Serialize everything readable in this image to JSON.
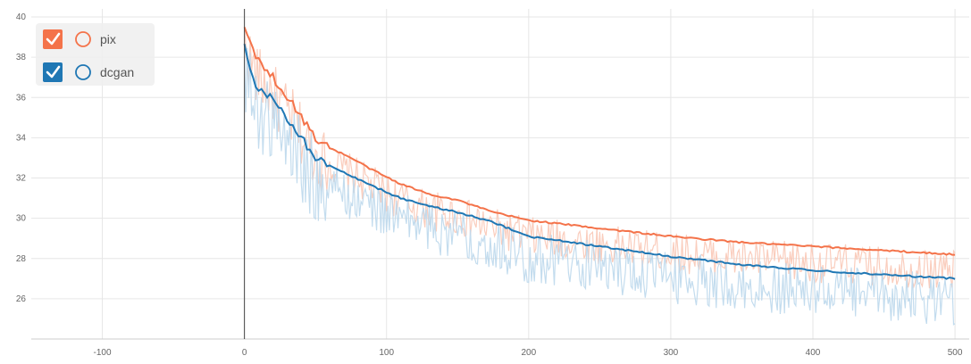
{
  "chart_data": {
    "type": "line",
    "title": "",
    "xlabel": "",
    "ylabel": "",
    "xlim": [
      -150,
      510
    ],
    "ylim": [
      24,
      40.4
    ],
    "x_ticks": [
      -100,
      0,
      100,
      200,
      300,
      400,
      500
    ],
    "y_ticks": [
      26,
      28,
      30,
      32,
      34,
      36,
      38,
      40
    ],
    "grid": true,
    "legend_position": "top-left",
    "series": [
      {
        "name": "pix",
        "color": "#f4734a",
        "raw_color": "#f9c8b6",
        "checked": true,
        "smoothed": [
          [
            0,
            39.6
          ],
          [
            5,
            38.5
          ],
          [
            10,
            37.8
          ],
          [
            15,
            37.5
          ],
          [
            20,
            37.0
          ],
          [
            25,
            36.5
          ],
          [
            30,
            36.0
          ],
          [
            35,
            35.6
          ],
          [
            40,
            35.0
          ],
          [
            45,
            34.5
          ],
          [
            50,
            34.0
          ],
          [
            60,
            33.5
          ],
          [
            75,
            33.0
          ],
          [
            90,
            32.4
          ],
          [
            110,
            31.7
          ],
          [
            130,
            31.2
          ],
          [
            150,
            30.9
          ],
          [
            175,
            30.3
          ],
          [
            200,
            29.9
          ],
          [
            250,
            29.5
          ],
          [
            300,
            29.1
          ],
          [
            350,
            28.8
          ],
          [
            400,
            28.6
          ],
          [
            450,
            28.4
          ],
          [
            500,
            28.2
          ]
        ]
      },
      {
        "name": "dcgan",
        "color": "#1f77b4",
        "raw_color": "#bcd8ec",
        "checked": true,
        "smoothed": [
          [
            0,
            38.8
          ],
          [
            5,
            37.0
          ],
          [
            10,
            36.4
          ],
          [
            15,
            36.2
          ],
          [
            20,
            36.0
          ],
          [
            25,
            35.5
          ],
          [
            30,
            35.0
          ],
          [
            35,
            34.5
          ],
          [
            40,
            34.0
          ],
          [
            45,
            33.5
          ],
          [
            50,
            33.0
          ],
          [
            60,
            32.6
          ],
          [
            75,
            32.1
          ],
          [
            90,
            31.6
          ],
          [
            110,
            31.0
          ],
          [
            130,
            30.6
          ],
          [
            150,
            30.3
          ],
          [
            175,
            29.8
          ],
          [
            200,
            29.1
          ],
          [
            250,
            28.6
          ],
          [
            300,
            28.1
          ],
          [
            350,
            27.7
          ],
          [
            400,
            27.4
          ],
          [
            450,
            27.2
          ],
          [
            500,
            27.0
          ]
        ]
      }
    ]
  }
}
